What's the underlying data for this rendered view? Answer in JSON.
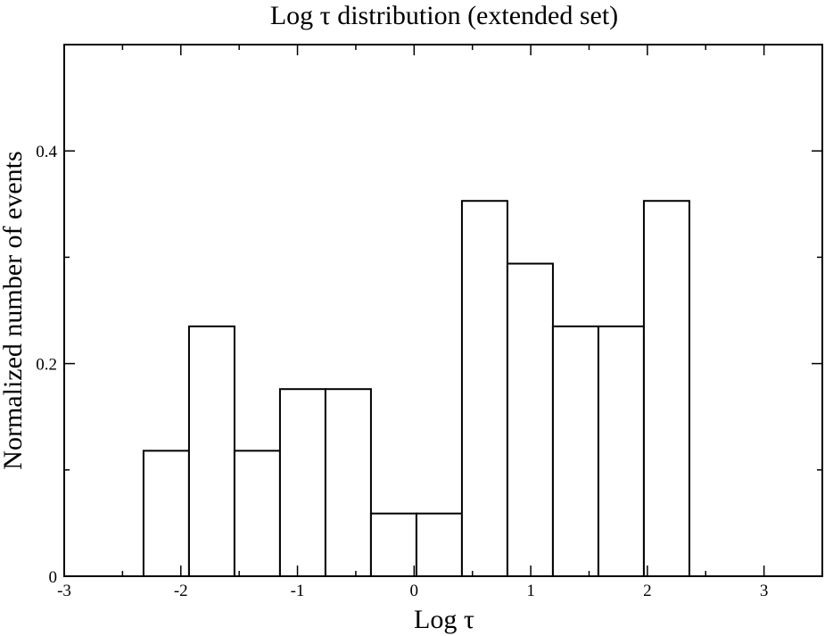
{
  "chart_data": {
    "type": "bar",
    "title": "Log  τ  distribution (extended set)",
    "xlabel": "Log  τ",
    "ylabel": "Normalized number of events",
    "xlim": [
      -3,
      3.5
    ],
    "ylim": [
      0,
      0.5
    ],
    "x_ticks": [
      -3,
      -2,
      -1,
      0,
      1,
      2,
      3
    ],
    "x_tick_labels": [
      "-3",
      "-2",
      "-1",
      "0",
      "1",
      "2",
      "3"
    ],
    "y_major_ticks": [
      0,
      0.2,
      0.4
    ],
    "y_tick_labels": [
      "0",
      "0.2",
      "0.4"
    ],
    "y_minor_ticks": [
      0.1,
      0.3
    ],
    "x_minor_step": 0.5,
    "bin_width": 0.39,
    "bin_edges": [
      -2.32,
      -1.93,
      -1.54,
      -1.15,
      -0.76,
      -0.37,
      0.02,
      0.41,
      0.8,
      1.19,
      1.58,
      1.97,
      2.36
    ],
    "values": [
      0.118,
      0.235,
      0.118,
      0.176,
      0.176,
      0.059,
      0.059,
      0.353,
      0.294,
      0.235,
      0.235,
      0.353
    ],
    "grid": false
  }
}
